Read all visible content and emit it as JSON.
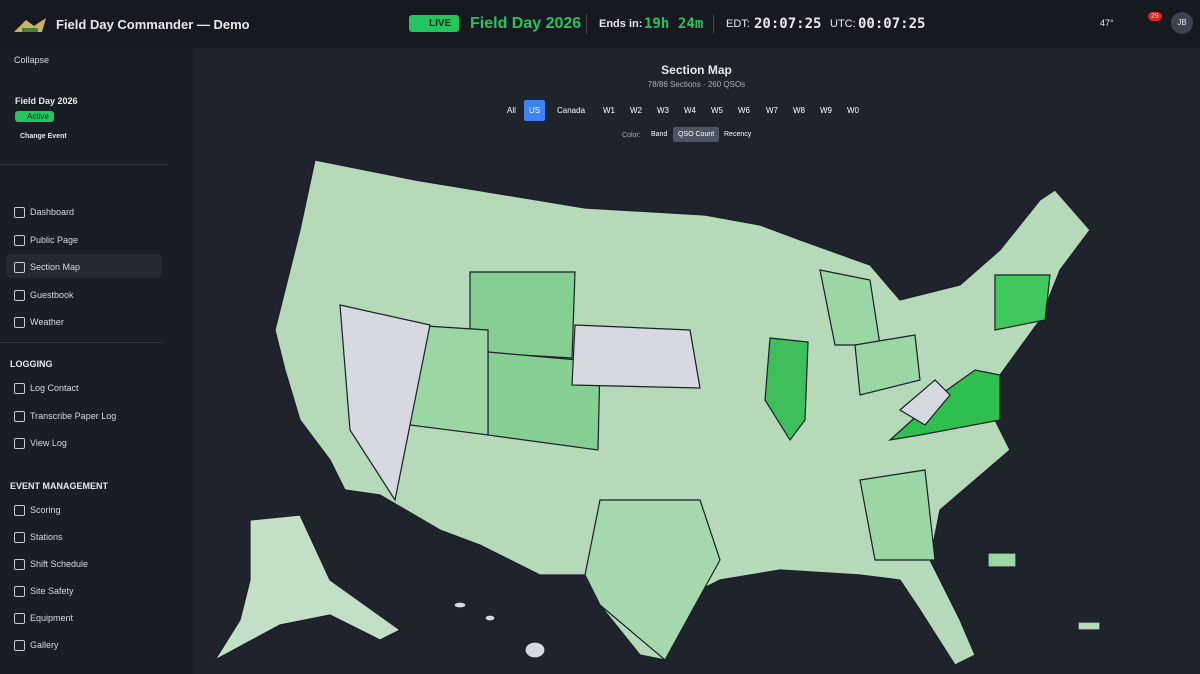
{
  "header": {
    "title": "Field Day Commander — Demo",
    "live": "LIVE",
    "event": "Field Day 2026",
    "ends_label": "Ends in:",
    "ends_h": "19h",
    "ends_m": "24m",
    "edt_label": "EDT:",
    "edt": "20:07:25",
    "utc_label": "UTC:",
    "utc": "00:07:25",
    "weather": "47°",
    "notifications": "29",
    "user": "JB"
  },
  "sidebar": {
    "collapse": "Collapse",
    "event_name": "Field Day 2026",
    "status": "Active",
    "change_event": "Change Event",
    "nav": [
      "Dashboard",
      "Public Page",
      "Section Map",
      "Guestbook",
      "Weather"
    ],
    "logging_title": "LOGGING",
    "logging": [
      "Log Contact",
      "Transcribe Paper Log",
      "View Log"
    ],
    "management_title": "EVENT MANAGEMENT",
    "management": [
      "Scoring",
      "Stations",
      "Shift Schedule",
      "Site Safety",
      "Equipment",
      "Gallery"
    ]
  },
  "main": {
    "title": "Section Map",
    "subtitle": "78/86 Sections · 260 QSOs",
    "filters": [
      "All",
      "US",
      "Canada",
      "W1",
      "W2",
      "W3",
      "W4",
      "W5",
      "W6",
      "W7",
      "W8",
      "W9",
      "W0"
    ],
    "color_label": "Color:",
    "color_modes": [
      "Band",
      "QSO Count",
      "Recency"
    ]
  }
}
